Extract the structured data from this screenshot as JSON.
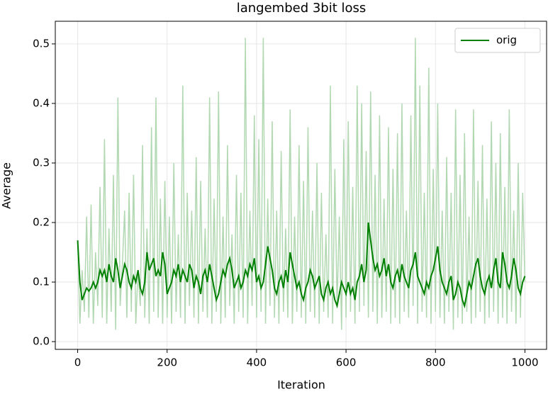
{
  "chart_data": {
    "type": "line",
    "title": "langembed 3bit loss",
    "xlabel": "Iteration",
    "ylabel": "Average",
    "x": [
      0,
      5,
      10,
      15,
      20,
      25,
      30,
      35,
      40,
      45,
      50,
      55,
      60,
      65,
      70,
      75,
      80,
      85,
      90,
      95,
      100,
      105,
      110,
      115,
      120,
      125,
      130,
      135,
      140,
      145,
      150,
      155,
      160,
      165,
      170,
      175,
      180,
      185,
      190,
      195,
      200,
      205,
      210,
      215,
      220,
      225,
      230,
      235,
      240,
      245,
      250,
      255,
      260,
      265,
      270,
      275,
      280,
      285,
      290,
      295,
      300,
      305,
      310,
      315,
      320,
      325,
      330,
      335,
      340,
      345,
      350,
      355,
      360,
      365,
      370,
      375,
      380,
      385,
      390,
      395,
      400,
      405,
      410,
      415,
      420,
      425,
      430,
      435,
      440,
      445,
      450,
      455,
      460,
      465,
      470,
      475,
      480,
      485,
      490,
      495,
      500,
      505,
      510,
      515,
      520,
      525,
      530,
      535,
      540,
      545,
      550,
      555,
      560,
      565,
      570,
      575,
      580,
      585,
      590,
      595,
      600,
      605,
      610,
      615,
      620,
      625,
      630,
      635,
      640,
      645,
      650,
      655,
      660,
      665,
      670,
      675,
      680,
      685,
      690,
      695,
      700,
      705,
      710,
      715,
      720,
      725,
      730,
      735,
      740,
      745,
      750,
      755,
      760,
      765,
      770,
      775,
      780,
      785,
      790,
      795,
      800,
      805,
      810,
      815,
      820,
      825,
      830,
      835,
      840,
      845,
      850,
      855,
      860,
      865,
      870,
      875,
      880,
      885,
      890,
      895,
      900,
      905,
      910,
      915,
      920,
      925,
      930,
      935,
      940,
      945,
      950,
      955,
      960,
      965,
      970,
      975,
      980,
      985,
      990,
      995,
      1000
    ],
    "series": [
      {
        "color": "#b2d8b2",
        "values": [
          0.17,
          0.03,
          0.12,
          0.05,
          0.21,
          0.04,
          0.23,
          0.03,
          0.15,
          0.06,
          0.26,
          0.04,
          0.34,
          0.03,
          0.19,
          0.05,
          0.28,
          0.02,
          0.41,
          0.06,
          0.13,
          0.22,
          0.04,
          0.25,
          0.05,
          0.28,
          0.03,
          0.12,
          0.06,
          0.33,
          0.04,
          0.19,
          0.03,
          0.36,
          0.05,
          0.41,
          0.04,
          0.24,
          0.03,
          0.27,
          0.04,
          0.21,
          0.03,
          0.3,
          0.05,
          0.18,
          0.04,
          0.43,
          0.03,
          0.25,
          0.06,
          0.22,
          0.04,
          0.31,
          0.03,
          0.27,
          0.05,
          0.19,
          0.04,
          0.41,
          0.03,
          0.24,
          0.05,
          0.42,
          0.03,
          0.21,
          0.04,
          0.33,
          0.06,
          0.18,
          0.03,
          0.28,
          0.05,
          0.25,
          0.04,
          0.51,
          0.03,
          0.22,
          0.06,
          0.38,
          0.04,
          0.34,
          0.05,
          0.51,
          0.03,
          0.24,
          0.06,
          0.37,
          0.04,
          0.22,
          0.03,
          0.32,
          0.05,
          0.19,
          0.04,
          0.39,
          0.03,
          0.21,
          0.05,
          0.33,
          0.04,
          0.27,
          0.03,
          0.36,
          0.05,
          0.22,
          0.04,
          0.3,
          0.03,
          0.25,
          0.05,
          0.18,
          0.04,
          0.43,
          0.03,
          0.29,
          0.06,
          0.21,
          0.02,
          0.34,
          0.04,
          0.37,
          0.05,
          0.26,
          0.03,
          0.43,
          0.05,
          0.4,
          0.06,
          0.32,
          0.04,
          0.42,
          0.05,
          0.28,
          0.03,
          0.38,
          0.04,
          0.24,
          0.05,
          0.36,
          0.03,
          0.29,
          0.04,
          0.35,
          0.03,
          0.4,
          0.05,
          0.22,
          0.04,
          0.38,
          0.06,
          0.51,
          0.03,
          0.43,
          0.05,
          0.25,
          0.04,
          0.46,
          0.03,
          0.29,
          0.05,
          0.4,
          0.04,
          0.22,
          0.03,
          0.31,
          0.05,
          0.25,
          0.02,
          0.39,
          0.04,
          0.28,
          0.03,
          0.35,
          0.05,
          0.21,
          0.03,
          0.39,
          0.04,
          0.27,
          0.05,
          0.33,
          0.03,
          0.24,
          0.04,
          0.37,
          0.05,
          0.3,
          0.03,
          0.35,
          0.04,
          0.26,
          0.03,
          0.39,
          0.05,
          0.22,
          0.03,
          0.3,
          0.04,
          0.25,
          0.1
        ]
      },
      {
        "name": "orig",
        "color": "#008000",
        "values": [
          0.17,
          0.1,
          0.07,
          0.08,
          0.09,
          0.085,
          0.09,
          0.1,
          0.09,
          0.1,
          0.12,
          0.11,
          0.12,
          0.1,
          0.13,
          0.11,
          0.1,
          0.14,
          0.12,
          0.09,
          0.11,
          0.13,
          0.12,
          0.1,
          0.09,
          0.11,
          0.1,
          0.12,
          0.09,
          0.08,
          0.1,
          0.15,
          0.12,
          0.13,
          0.14,
          0.11,
          0.12,
          0.11,
          0.15,
          0.13,
          0.08,
          0.09,
          0.1,
          0.12,
          0.11,
          0.13,
          0.1,
          0.12,
          0.11,
          0.1,
          0.13,
          0.12,
          0.09,
          0.11,
          0.1,
          0.08,
          0.11,
          0.12,
          0.1,
          0.13,
          0.11,
          0.09,
          0.07,
          0.08,
          0.1,
          0.12,
          0.11,
          0.13,
          0.14,
          0.12,
          0.09,
          0.1,
          0.11,
          0.09,
          0.1,
          0.12,
          0.11,
          0.13,
          0.12,
          0.14,
          0.1,
          0.11,
          0.09,
          0.1,
          0.13,
          0.16,
          0.14,
          0.12,
          0.09,
          0.08,
          0.1,
          0.11,
          0.09,
          0.12,
          0.1,
          0.15,
          0.13,
          0.11,
          0.09,
          0.1,
          0.08,
          0.07,
          0.09,
          0.1,
          0.12,
          0.11,
          0.09,
          0.1,
          0.11,
          0.08,
          0.07,
          0.09,
          0.1,
          0.08,
          0.09,
          0.07,
          0.06,
          0.08,
          0.1,
          0.09,
          0.08,
          0.1,
          0.08,
          0.09,
          0.07,
          0.1,
          0.11,
          0.13,
          0.1,
          0.12,
          0.2,
          0.17,
          0.14,
          0.12,
          0.13,
          0.11,
          0.12,
          0.14,
          0.11,
          0.13,
          0.1,
          0.09,
          0.11,
          0.12,
          0.1,
          0.13,
          0.11,
          0.1,
          0.09,
          0.12,
          0.13,
          0.15,
          0.11,
          0.1,
          0.09,
          0.08,
          0.1,
          0.09,
          0.11,
          0.12,
          0.14,
          0.16,
          0.12,
          0.1,
          0.09,
          0.08,
          0.1,
          0.11,
          0.07,
          0.08,
          0.1,
          0.09,
          0.07,
          0.06,
          0.08,
          0.1,
          0.09,
          0.11,
          0.13,
          0.14,
          0.11,
          0.09,
          0.08,
          0.1,
          0.11,
          0.09,
          0.12,
          0.14,
          0.1,
          0.09,
          0.15,
          0.13,
          0.1,
          0.09,
          0.11,
          0.14,
          0.12,
          0.09,
          0.08,
          0.1,
          0.11
        ]
      }
    ],
    "xlim": [
      -50,
      1050
    ],
    "xticks": [
      0,
      200,
      400,
      600,
      800,
      1000
    ],
    "ylim": [
      -0.013,
      0.538
    ],
    "yticks": [
      {
        "value": 0,
        "label": "0.0"
      },
      0.1,
      0.2,
      0.3,
      0.4,
      0.5
    ],
    "grid": true,
    "legend": "upper right"
  }
}
